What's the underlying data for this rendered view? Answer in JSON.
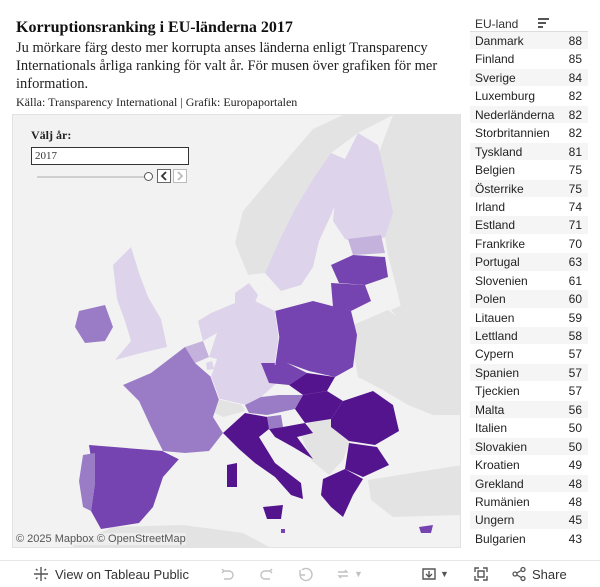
{
  "header": {
    "title": "Korruptionsranking i EU-länderna 2017",
    "subtitle": "Ju mörkare färg desto mer korrupta anses länderna enligt Transparency Internationals årliga ranking för valt år. För musen över grafiken för mer information.",
    "source": "Källa: Transparency International | Grafik: Europaportalen"
  },
  "map": {
    "year_label": "Välj år:",
    "year_value": "2017",
    "attribution": "© 2025 Mapbox  © OpenStreetMap"
  },
  "ranking": {
    "column_label": "EU-land",
    "rows": [
      {
        "country": "Danmark",
        "score": "88"
      },
      {
        "country": "Finland",
        "score": "85"
      },
      {
        "country": "Sverige",
        "score": "84"
      },
      {
        "country": "Luxemburg",
        "score": "82"
      },
      {
        "country": "Nederländerna",
        "score": "82"
      },
      {
        "country": "Storbritannien",
        "score": "82"
      },
      {
        "country": "Tyskland",
        "score": "81"
      },
      {
        "country": "Belgien",
        "score": "75"
      },
      {
        "country": "Österrike",
        "score": "75"
      },
      {
        "country": "Irland",
        "score": "74"
      },
      {
        "country": "Estland",
        "score": "71"
      },
      {
        "country": "Frankrike",
        "score": "70"
      },
      {
        "country": "Portugal",
        "score": "63"
      },
      {
        "country": "Slovenien",
        "score": "61"
      },
      {
        "country": "Polen",
        "score": "60"
      },
      {
        "country": "Litauen",
        "score": "59"
      },
      {
        "country": "Lettland",
        "score": "58"
      },
      {
        "country": "Cypern",
        "score": "57"
      },
      {
        "country": "Spanien",
        "score": "57"
      },
      {
        "country": "Tjeckien",
        "score": "57"
      },
      {
        "country": "Malta",
        "score": "56"
      },
      {
        "country": "Italien",
        "score": "50"
      },
      {
        "country": "Slovakien",
        "score": "50"
      },
      {
        "country": "Kroatien",
        "score": "49"
      },
      {
        "country": "Grekland",
        "score": "48"
      },
      {
        "country": "Rumänien",
        "score": "48"
      },
      {
        "country": "Ungern",
        "score": "45"
      },
      {
        "country": "Bulgarien",
        "score": "43"
      }
    ]
  },
  "toolbar": {
    "view_label": "View on Tableau Public",
    "share_label": "Share"
  },
  "colors": {
    "lightest": "#ddd3ea",
    "light": "#c4b1dc",
    "mid": "#9a7cc6",
    "dark": "#7544b0",
    "darkest": "#53148e",
    "non_eu": "#e3e3e3",
    "sea": "#f2f2f2"
  }
}
